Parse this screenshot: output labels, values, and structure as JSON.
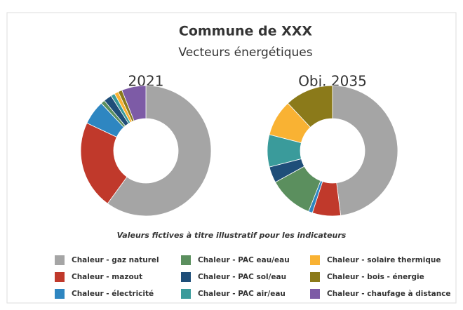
{
  "chart_data": {
    "type": "donut",
    "title": "Commune de XXX",
    "subtitle": "Vecteurs énergétiques",
    "note": "Valeurs fictives à titre illustratif pour les indicateurs",
    "categories": [
      "Chaleur - gaz naturel",
      "Chaleur - mazout",
      "Chaleur - électricité",
      "Chaleur - PAC eau/eau",
      "Chaleur  - PAC sol/eau",
      "Chaleur - PAC air/eau",
      "Chaleur - solaire thermique",
      "Chaleur - bois - énergie",
      "Chaleur - chaufage à distance"
    ],
    "colors": [
      "#a5a5a5",
      "#c0392b",
      "#2e86c1",
      "#5b8f5e",
      "#1f4e79",
      "#3a9b9b",
      "#f9b233",
      "#8b7a1a",
      "#7d5ba6"
    ],
    "series": [
      {
        "name": "2021",
        "values": [
          60,
          22,
          6,
          1,
          2,
          1,
          1,
          1,
          6
        ]
      },
      {
        "name": "Obj. 2035",
        "values": [
          48,
          7,
          1,
          11,
          4,
          8,
          9,
          12,
          0
        ]
      }
    ]
  }
}
